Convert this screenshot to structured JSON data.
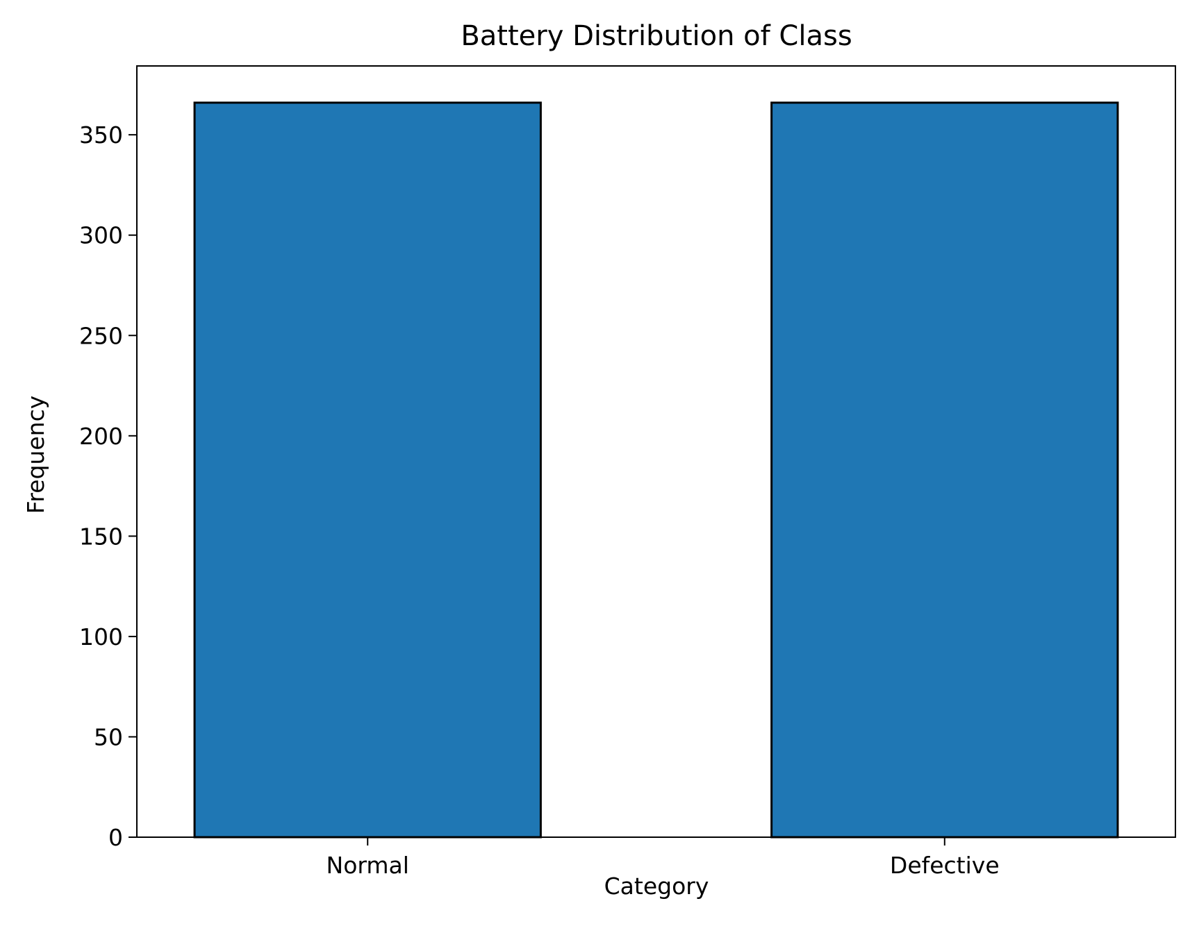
{
  "chart_data": {
    "type": "bar",
    "title": "Battery Distribution of Class",
    "xlabel": "Category",
    "ylabel": "Frequency",
    "categories": [
      "Normal",
      "Defective"
    ],
    "values": [
      366,
      366
    ],
    "ylim": [
      0,
      384.3
    ],
    "yticks": [
      0,
      50,
      100,
      150,
      200,
      250,
      300,
      350
    ],
    "ytick_labels": [
      "0",
      "50",
      "100",
      "150",
      "200",
      "250",
      "300",
      "350"
    ],
    "bar_color": "#1f77b4",
    "bar_edge_color": "#000000",
    "grid": false,
    "legend": "none"
  }
}
